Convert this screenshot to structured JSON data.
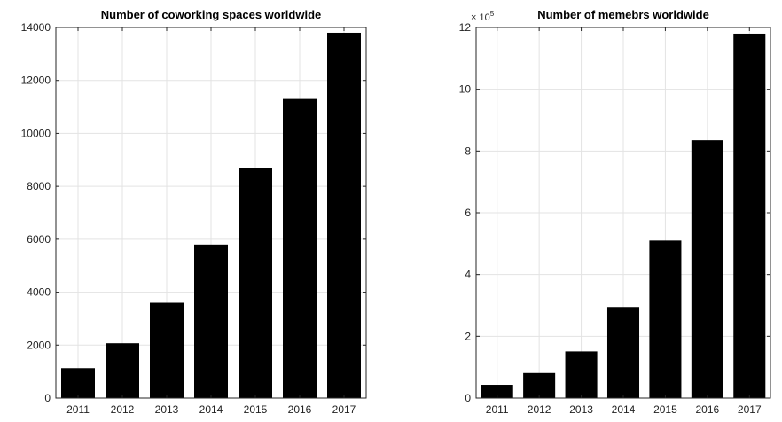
{
  "chart_data": [
    {
      "type": "bar",
      "title": "Number of coworking spaces worldwide",
      "xlabel": "",
      "ylabel": "",
      "categories": [
        "2011",
        "2012",
        "2013",
        "2014",
        "2015",
        "2016",
        "2017"
      ],
      "values": [
        1130,
        2070,
        3600,
        5800,
        8700,
        11300,
        13800
      ],
      "ylim": [
        0,
        14000
      ],
      "yticks": [
        0,
        2000,
        4000,
        6000,
        8000,
        10000,
        12000,
        14000
      ],
      "ytick_labels": [
        "0",
        "2000",
        "4000",
        "6000",
        "8000",
        "10000",
        "12000",
        "14000"
      ],
      "grid": true,
      "legend": "none",
      "bar_color": "#000000"
    },
    {
      "type": "bar",
      "title": "Number of memebrs worldwide",
      "xlabel": "",
      "ylabel": "",
      "categories": [
        "2011",
        "2012",
        "2013",
        "2014",
        "2015",
        "2016",
        "2017"
      ],
      "values": [
        43000,
        81000,
        151000,
        295000,
        510000,
        835000,
        1180000
      ],
      "ylim": [
        0,
        1200000
      ],
      "yticks": [
        0,
        200000,
        400000,
        600000,
        800000,
        1000000,
        1200000
      ],
      "ytick_labels": [
        "0",
        "2",
        "4",
        "6",
        "8",
        "10",
        "12"
      ],
      "exponent_base": "× 10",
      "exponent_power": "5",
      "grid": true,
      "legend": "none",
      "bar_color": "#000000"
    }
  ]
}
